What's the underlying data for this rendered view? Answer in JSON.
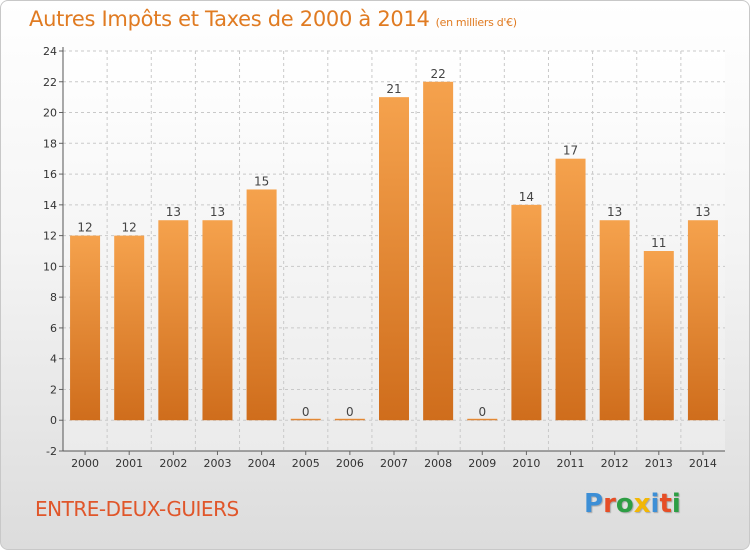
{
  "header": {
    "title": "Autres Impôts et Taxes de 2000 à 2014",
    "unit": "(en milliers d'€)"
  },
  "footer": {
    "commune": "ENTRE-DEUX-GUIERS",
    "logo_text": "Proxiti",
    "logo_colors": [
      "#3d8fd6",
      "#e64e26",
      "#2d9e44",
      "#f2b705",
      "#3d8fd6",
      "#e64e26",
      "#2d9e44"
    ]
  },
  "colors": {
    "bar_light": "#f5a24d",
    "bar_dark": "#cf6d1c",
    "title": "#e07b22",
    "commune": "#e0562a",
    "grid": "#c9c9c9"
  },
  "chart_data": {
    "type": "bar",
    "title": "Autres Impôts et Taxes de 2000 à 2014",
    "subtitle": "(en milliers d'€)",
    "categories": [
      "2000",
      "2001",
      "2002",
      "2003",
      "2004",
      "2005",
      "2006",
      "2007",
      "2008",
      "2009",
      "2010",
      "2011",
      "2012",
      "2013",
      "2014"
    ],
    "values": [
      12,
      12,
      13,
      13,
      15,
      0,
      0,
      21,
      22,
      0,
      14,
      17,
      13,
      11,
      13
    ],
    "data_labels": [
      "12",
      "12",
      "13",
      "13",
      "15",
      "0",
      "0",
      "21",
      "22",
      "0",
      "14",
      "17",
      "13",
      "11",
      "13"
    ],
    "yticks": [
      -2,
      0,
      2,
      4,
      6,
      8,
      10,
      12,
      14,
      16,
      18,
      20,
      22,
      24
    ],
    "ylim": [
      -2,
      24
    ],
    "grid": true
  }
}
